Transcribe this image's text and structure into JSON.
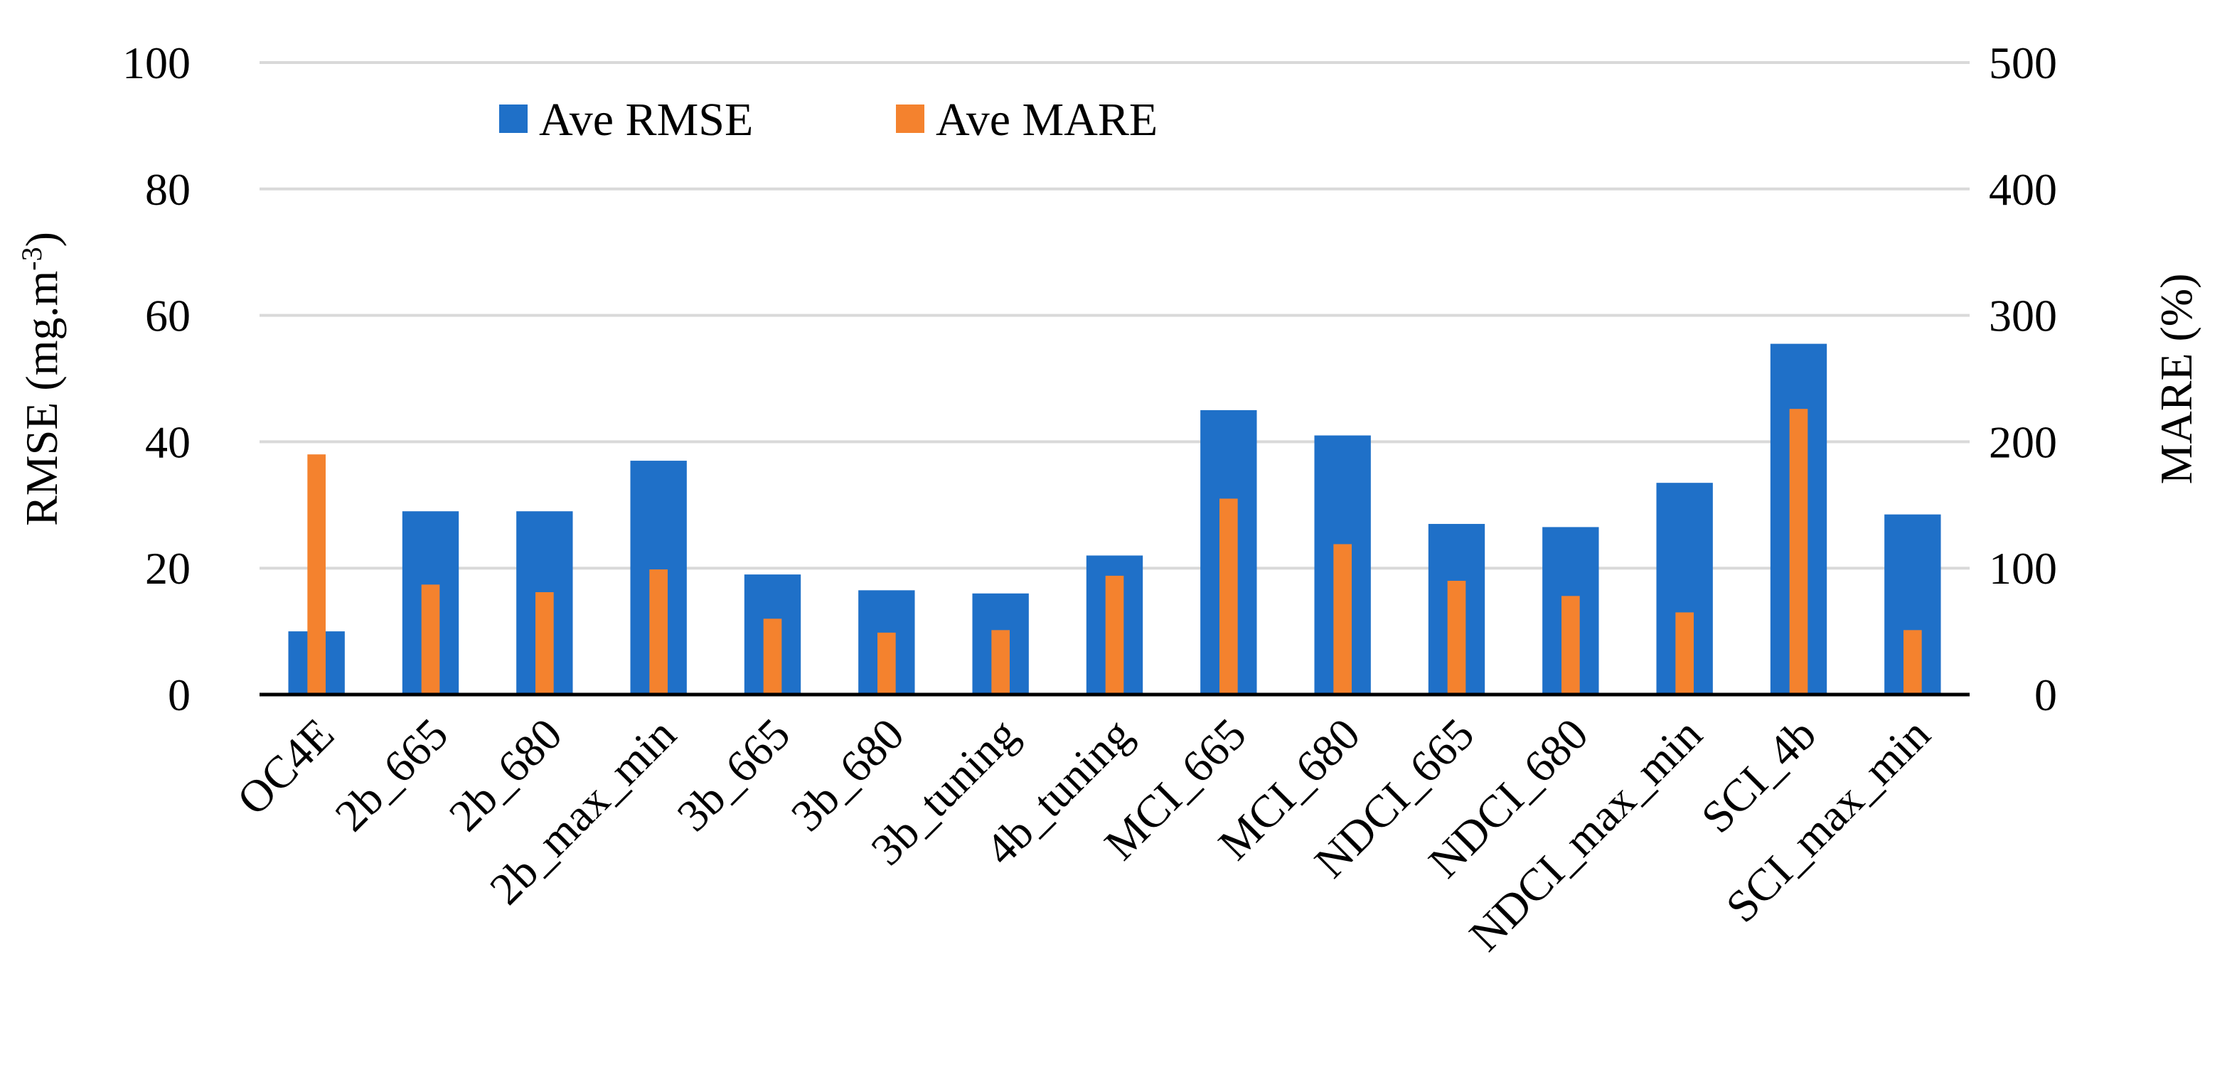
{
  "chart_data": {
    "type": "bar",
    "categories": [
      "OC4E",
      "2b_665",
      "2b_680",
      "2b_max_min",
      "3b_665",
      "3b_680",
      "3b_tuning",
      "4b_tuning",
      "MCI_665",
      "MCI_680",
      "NDCI_665",
      "NDCI_680",
      "NDCI_max_min",
      "SCI_4b",
      "SCI_max_min"
    ],
    "series": [
      {
        "name": "Ave RMSE",
        "axis": "left",
        "color": "#1f70c8",
        "values": [
          10,
          29,
          29,
          37,
          19,
          16.5,
          16,
          22,
          45,
          41,
          27,
          26.5,
          33.5,
          55.5,
          28.5
        ]
      },
      {
        "name": "Ave MARE",
        "axis": "right",
        "color": "#f4822e",
        "values": [
          190,
          87,
          81,
          99,
          60,
          49,
          51,
          94,
          155,
          119,
          90,
          78,
          65,
          226,
          51
        ]
      }
    ],
    "y_left": {
      "label_main": "RMSE (mg.m",
      "label_sup": "-3",
      "label_end": ")",
      "range": [
        0,
        100
      ],
      "ticks": [
        "0",
        "20",
        "40",
        "60",
        "80",
        "100"
      ]
    },
    "y_right": {
      "label": "MARE (%)",
      "range": [
        0,
        500
      ],
      "ticks": [
        "0",
        "100",
        "200",
        "300",
        "400",
        "500"
      ]
    },
    "grid": true,
    "legend_position": "top-left"
  }
}
